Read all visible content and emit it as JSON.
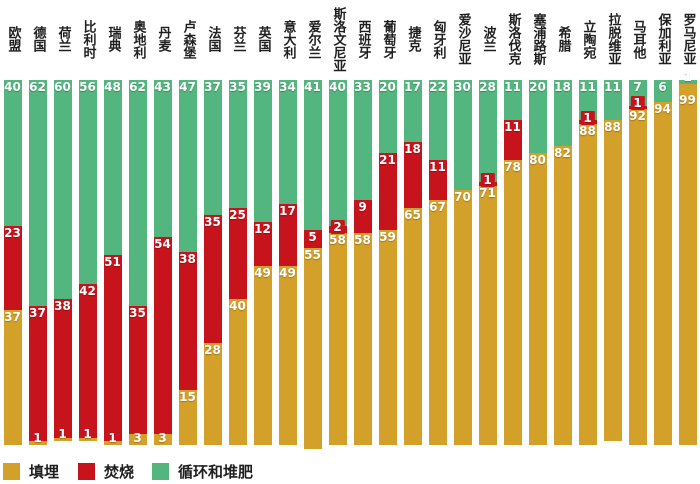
{
  "chart_data": {
    "type": "bar",
    "subtype": "stacked-vertical-100pct",
    "unit": "%",
    "ylim": [
      0,
      100
    ],
    "grid": false,
    "legend_position": "bottom",
    "categories": [
      "欧盟",
      "德国",
      "荷兰",
      "比利时",
      "瑞典",
      "奥地利",
      "丹麦",
      "卢森堡",
      "法国",
      "芬兰",
      "英国",
      "意大利",
      "爱尔兰",
      "斯洛文尼亚",
      "西班牙",
      "葡萄牙",
      "捷克",
      "匈牙利",
      "爱沙尼亚",
      "波兰",
      "斯洛伐克",
      "塞浦路斯",
      "希腊",
      "立陶宛",
      "拉脱维亚",
      "马耳他",
      "保加利亚",
      "罗马尼亚"
    ],
    "series": [
      {
        "name": "循环和堆肥",
        "color": "#54B67F",
        "stack_order": "top",
        "values": [
          40,
          62,
          60,
          56,
          48,
          62,
          43,
          47,
          37,
          35,
          39,
          34,
          41,
          40,
          33,
          20,
          17,
          22,
          30,
          28,
          11,
          20,
          18,
          11,
          11,
          7,
          6,
          1
        ]
      },
      {
        "name": "焚烧",
        "color": "#C7141C",
        "stack_order": "middle",
        "values": [
          23,
          37,
          38,
          42,
          51,
          35,
          54,
          38,
          35,
          25,
          12,
          17,
          5,
          2,
          9,
          21,
          18,
          11,
          0,
          1,
          11,
          0,
          0,
          1,
          0,
          1,
          0,
          0
        ]
      },
      {
        "name": "填埋",
        "color": "#D3A02A",
        "stack_order": "bottom",
        "values": [
          37,
          1,
          1,
          1,
          1,
          3,
          3,
          15,
          28,
          40,
          49,
          49,
          55,
          58,
          58,
          59,
          65,
          67,
          70,
          71,
          78,
          80,
          82,
          88,
          88,
          92,
          94,
          99
        ]
      }
    ]
  },
  "legend": {
    "items": [
      {
        "label": "填埋",
        "color": "#D3A02A"
      },
      {
        "label": "焚烧",
        "color": "#C7141C"
      },
      {
        "label": "循环和堆肥",
        "color": "#54B67F"
      }
    ]
  },
  "colors": {
    "landfill": "#D3A02A",
    "incineration": "#C7141C",
    "recycling_composting": "#54B67F",
    "label_text": "#1F1F1F",
    "value_text": "#FFFFFF",
    "background": "#FFFFFF"
  }
}
